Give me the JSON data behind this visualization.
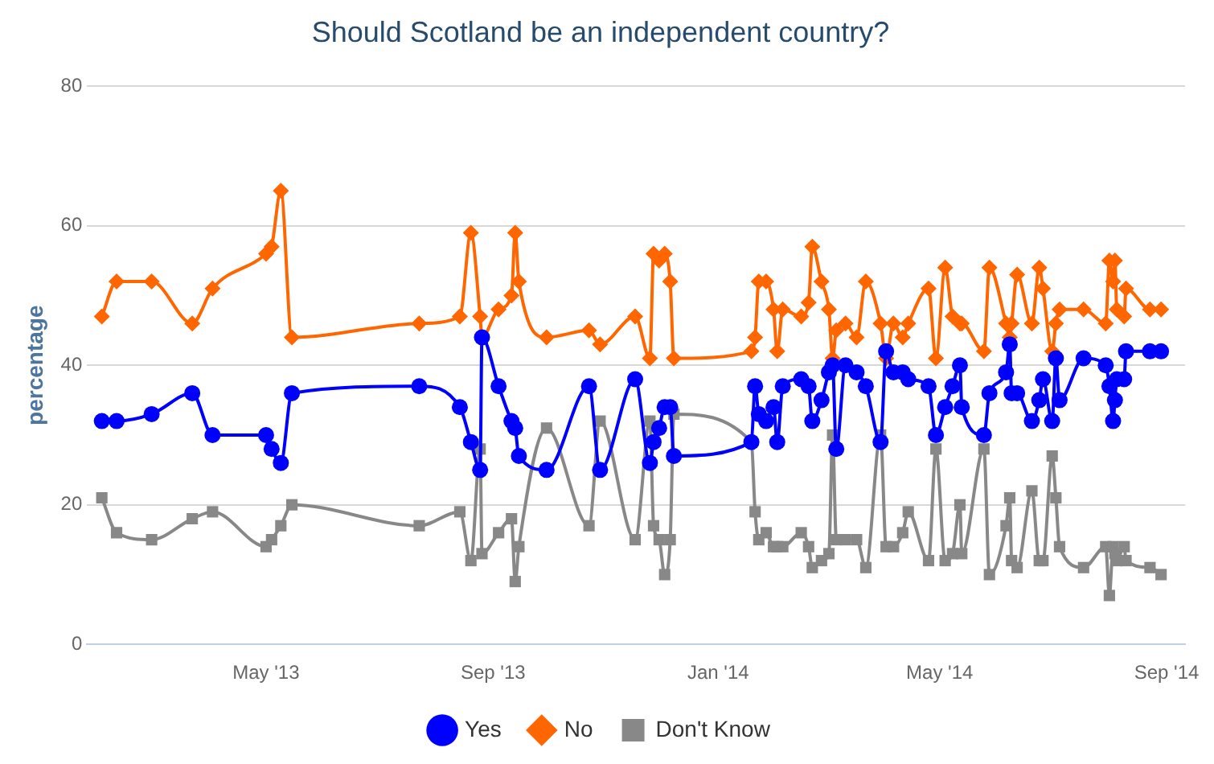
{
  "chart_data": {
    "type": "line",
    "title": "Should Scotland be an independent country?",
    "ylabel": "percentage",
    "x": [
      "2013-02-01",
      "2013-02-09",
      "2013-02-28",
      "2013-03-22",
      "2013-04-02",
      "2013-05-01",
      "2013-05-04",
      "2013-05-09",
      "2013-05-15",
      "2013-07-23",
      "2013-08-14",
      "2013-08-20",
      "2013-08-25",
      "2013-08-26",
      "2013-09-04",
      "2013-09-11",
      "2013-09-13",
      "2013-09-15",
      "2013-09-30",
      "2013-10-23",
      "2013-10-29",
      "2013-11-17",
      "2013-11-25",
      "2013-11-27",
      "2013-11-30",
      "2013-12-03",
      "2013-12-06",
      "2013-12-08",
      "2014-01-19",
      "2014-01-21",
      "2014-01-23",
      "2014-01-27",
      "2014-01-31",
      "2014-02-02",
      "2014-02-05",
      "2014-02-15",
      "2014-02-19",
      "2014-02-21",
      "2014-02-26",
      "2014-03-02",
      "2014-03-04",
      "2014-03-06",
      "2014-03-11",
      "2014-03-17",
      "2014-03-22",
      "2014-03-30",
      "2014-04-02",
      "2014-04-06",
      "2014-04-11",
      "2014-04-14",
      "2014-04-25",
      "2014-04-29",
      "2014-05-04",
      "2014-05-08",
      "2014-05-12",
      "2014-05-13",
      "2014-05-25",
      "2014-05-28",
      "2014-06-06",
      "2014-06-08",
      "2014-06-09",
      "2014-06-12",
      "2014-06-20",
      "2014-06-24",
      "2014-06-26",
      "2014-07-01",
      "2014-07-03",
      "2014-07-05",
      "2014-07-18",
      "2014-07-30",
      "2014-08-01",
      "2014-08-03",
      "2014-08-04",
      "2014-08-05",
      "2014-08-09",
      "2014-08-10",
      "2014-08-23",
      "2014-08-29"
    ],
    "series": [
      {
        "name": "Yes",
        "color": "#0000ff",
        "marker": "circle",
        "values": [
          32,
          32,
          33,
          36,
          30,
          30,
          28,
          26,
          36,
          37,
          34,
          29,
          25,
          44,
          37,
          32,
          31,
          27,
          25,
          37,
          25,
          38,
          26,
          29,
          31,
          34,
          34,
          27,
          29,
          37,
          33,
          32,
          34,
          29,
          37,
          38,
          37,
          32,
          35,
          39,
          40,
          28,
          40,
          39,
          37,
          29,
          42,
          39,
          39,
          38,
          37,
          30,
          34,
          37,
          40,
          34,
          30,
          36,
          39,
          43,
          36,
          36,
          32,
          35,
          38,
          32,
          41,
          35,
          41,
          40,
          37,
          32,
          35,
          38,
          38,
          42,
          42,
          42
        ]
      },
      {
        "name": "No",
        "color": "#ff6600",
        "marker": "diamond",
        "values": [
          47,
          52,
          52,
          46,
          51,
          56,
          57,
          65,
          44,
          46,
          47,
          59,
          47,
          44,
          48,
          50,
          59,
          52,
          44,
          45,
          43,
          47,
          41,
          56,
          55,
          56,
          52,
          41,
          42,
          44,
          52,
          52,
          48,
          42,
          48,
          47,
          49,
          57,
          52,
          48,
          41,
          45,
          46,
          44,
          52,
          46,
          41,
          46,
          44,
          46,
          51,
          41,
          54,
          47,
          46,
          46,
          42,
          54,
          46,
          44,
          46,
          53,
          46,
          54,
          51,
          42,
          46,
          48,
          48,
          46,
          55,
          52,
          55,
          48,
          47,
          51,
          48,
          48
        ]
      },
      {
        "name": "Don't Know",
        "color": "#888888",
        "marker": "square",
        "values": [
          21,
          16,
          15,
          18,
          19,
          14,
          15,
          17,
          20,
          17,
          19,
          12,
          28,
          13,
          16,
          18,
          9,
          14,
          31,
          17,
          32,
          15,
          32,
          17,
          15,
          10,
          15,
          33,
          29,
          19,
          15,
          16,
          14,
          14,
          14,
          16,
          14,
          11,
          12,
          13,
          30,
          15,
          15,
          15,
          11,
          30,
          14,
          14,
          16,
          19,
          12,
          28,
          12,
          13,
          20,
          13,
          28,
          10,
          17,
          21,
          12,
          11,
          22,
          12,
          12,
          27,
          21,
          14,
          11,
          14,
          7,
          14,
          13,
          12,
          14,
          12,
          11,
          10
        ]
      }
    ],
    "xlim": [
      "2013-01-24",
      "2014-09-11"
    ],
    "xticks": [
      {
        "value": "2013-05-01",
        "label": "May '13"
      },
      {
        "value": "2013-09-01",
        "label": "Sep '13"
      },
      {
        "value": "2014-01-01",
        "label": "Jan '14"
      },
      {
        "value": "2014-05-01",
        "label": "May '14"
      },
      {
        "value": "2014-09-01",
        "label": "Sep '14"
      }
    ],
    "ylim": [
      0,
      80
    ],
    "yticks": [
      0,
      20,
      40,
      60,
      80
    ],
    "grid": "y",
    "legend": "bottom"
  }
}
